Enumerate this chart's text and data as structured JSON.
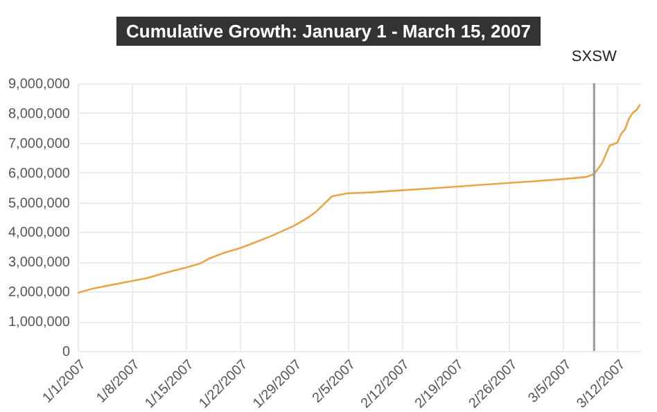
{
  "chart_data": {
    "type": "line",
    "title": "Cumulative Growth: January 1 - March 15, 2007",
    "x": [
      "2007-01-01",
      "2007-01-03",
      "2007-01-05",
      "2007-01-08",
      "2007-01-10",
      "2007-01-12",
      "2007-01-15",
      "2007-01-17",
      "2007-01-18",
      "2007-01-20",
      "2007-01-22",
      "2007-01-24",
      "2007-01-26",
      "2007-01-29",
      "2007-01-31",
      "2007-02-01",
      "2007-02-02",
      "2007-02-03",
      "2007-02-05",
      "2007-02-08",
      "2007-02-12",
      "2007-02-15",
      "2007-02-19",
      "2007-02-22",
      "2007-02-26",
      "2007-03-01",
      "2007-03-05",
      "2007-03-08",
      "2007-03-09",
      "2007-03-10",
      "2007-03-10T12:00",
      "2007-03-11",
      "2007-03-12",
      "2007-03-12T12:00",
      "2007-03-13",
      "2007-03-13T12:00",
      "2007-03-14",
      "2007-03-14T12:00",
      "2007-03-15"
    ],
    "series": [
      {
        "color": "#e8a54a",
        "values": [
          1950000,
          2100000,
          2200000,
          2350000,
          2450000,
          2600000,
          2800000,
          2950000,
          3100000,
          3300000,
          3450000,
          3650000,
          3850000,
          4200000,
          4500000,
          4700000,
          4950000,
          5200000,
          5300000,
          5330000,
          5400000,
          5450000,
          5520000,
          5580000,
          5650000,
          5700000,
          5780000,
          5850000,
          5950000,
          6300000,
          6600000,
          6900000,
          7000000,
          7300000,
          7450000,
          7800000,
          8000000,
          8100000,
          8300000
        ]
      }
    ],
    "xlim": [
      "2007-01-01",
      "2007-03-15"
    ],
    "xticks": [
      {
        "value": "2007-01-01",
        "label": "1/1/2007"
      },
      {
        "value": "2007-01-08",
        "label": "1/8/2007"
      },
      {
        "value": "2007-01-15",
        "label": "1/15/2007"
      },
      {
        "value": "2007-01-22",
        "label": "1/22/2007"
      },
      {
        "value": "2007-01-29",
        "label": "1/29/2007"
      },
      {
        "value": "2007-02-05",
        "label": "2/5/2007"
      },
      {
        "value": "2007-02-12",
        "label": "2/12/2007"
      },
      {
        "value": "2007-02-19",
        "label": "2/19/2007"
      },
      {
        "value": "2007-02-26",
        "label": "2/26/2007"
      },
      {
        "value": "2007-03-05",
        "label": "3/5/2007"
      },
      {
        "value": "2007-03-12",
        "label": "3/12/2007"
      }
    ],
    "ylim": [
      0,
      9000000
    ],
    "yticks": [
      {
        "value": 0,
        "label": "0"
      },
      {
        "value": 1000000,
        "label": "1,000,000"
      },
      {
        "value": 2000000,
        "label": "2,000,000"
      },
      {
        "value": 3000000,
        "label": "3,000,000"
      },
      {
        "value": 4000000,
        "label": "4,000,000"
      },
      {
        "value": 5000000,
        "label": "5,000,000"
      },
      {
        "value": 6000000,
        "label": "6,000,000"
      },
      {
        "value": 7000000,
        "label": "7,000,000"
      },
      {
        "value": 8000000,
        "label": "8,000,000"
      },
      {
        "value": 9000000,
        "label": "9,000,000"
      }
    ],
    "ref_lines": [
      {
        "axis": "x",
        "value": "2007-03-09",
        "label": "SXSW",
        "color": "#999999"
      }
    ],
    "grid": true
  }
}
